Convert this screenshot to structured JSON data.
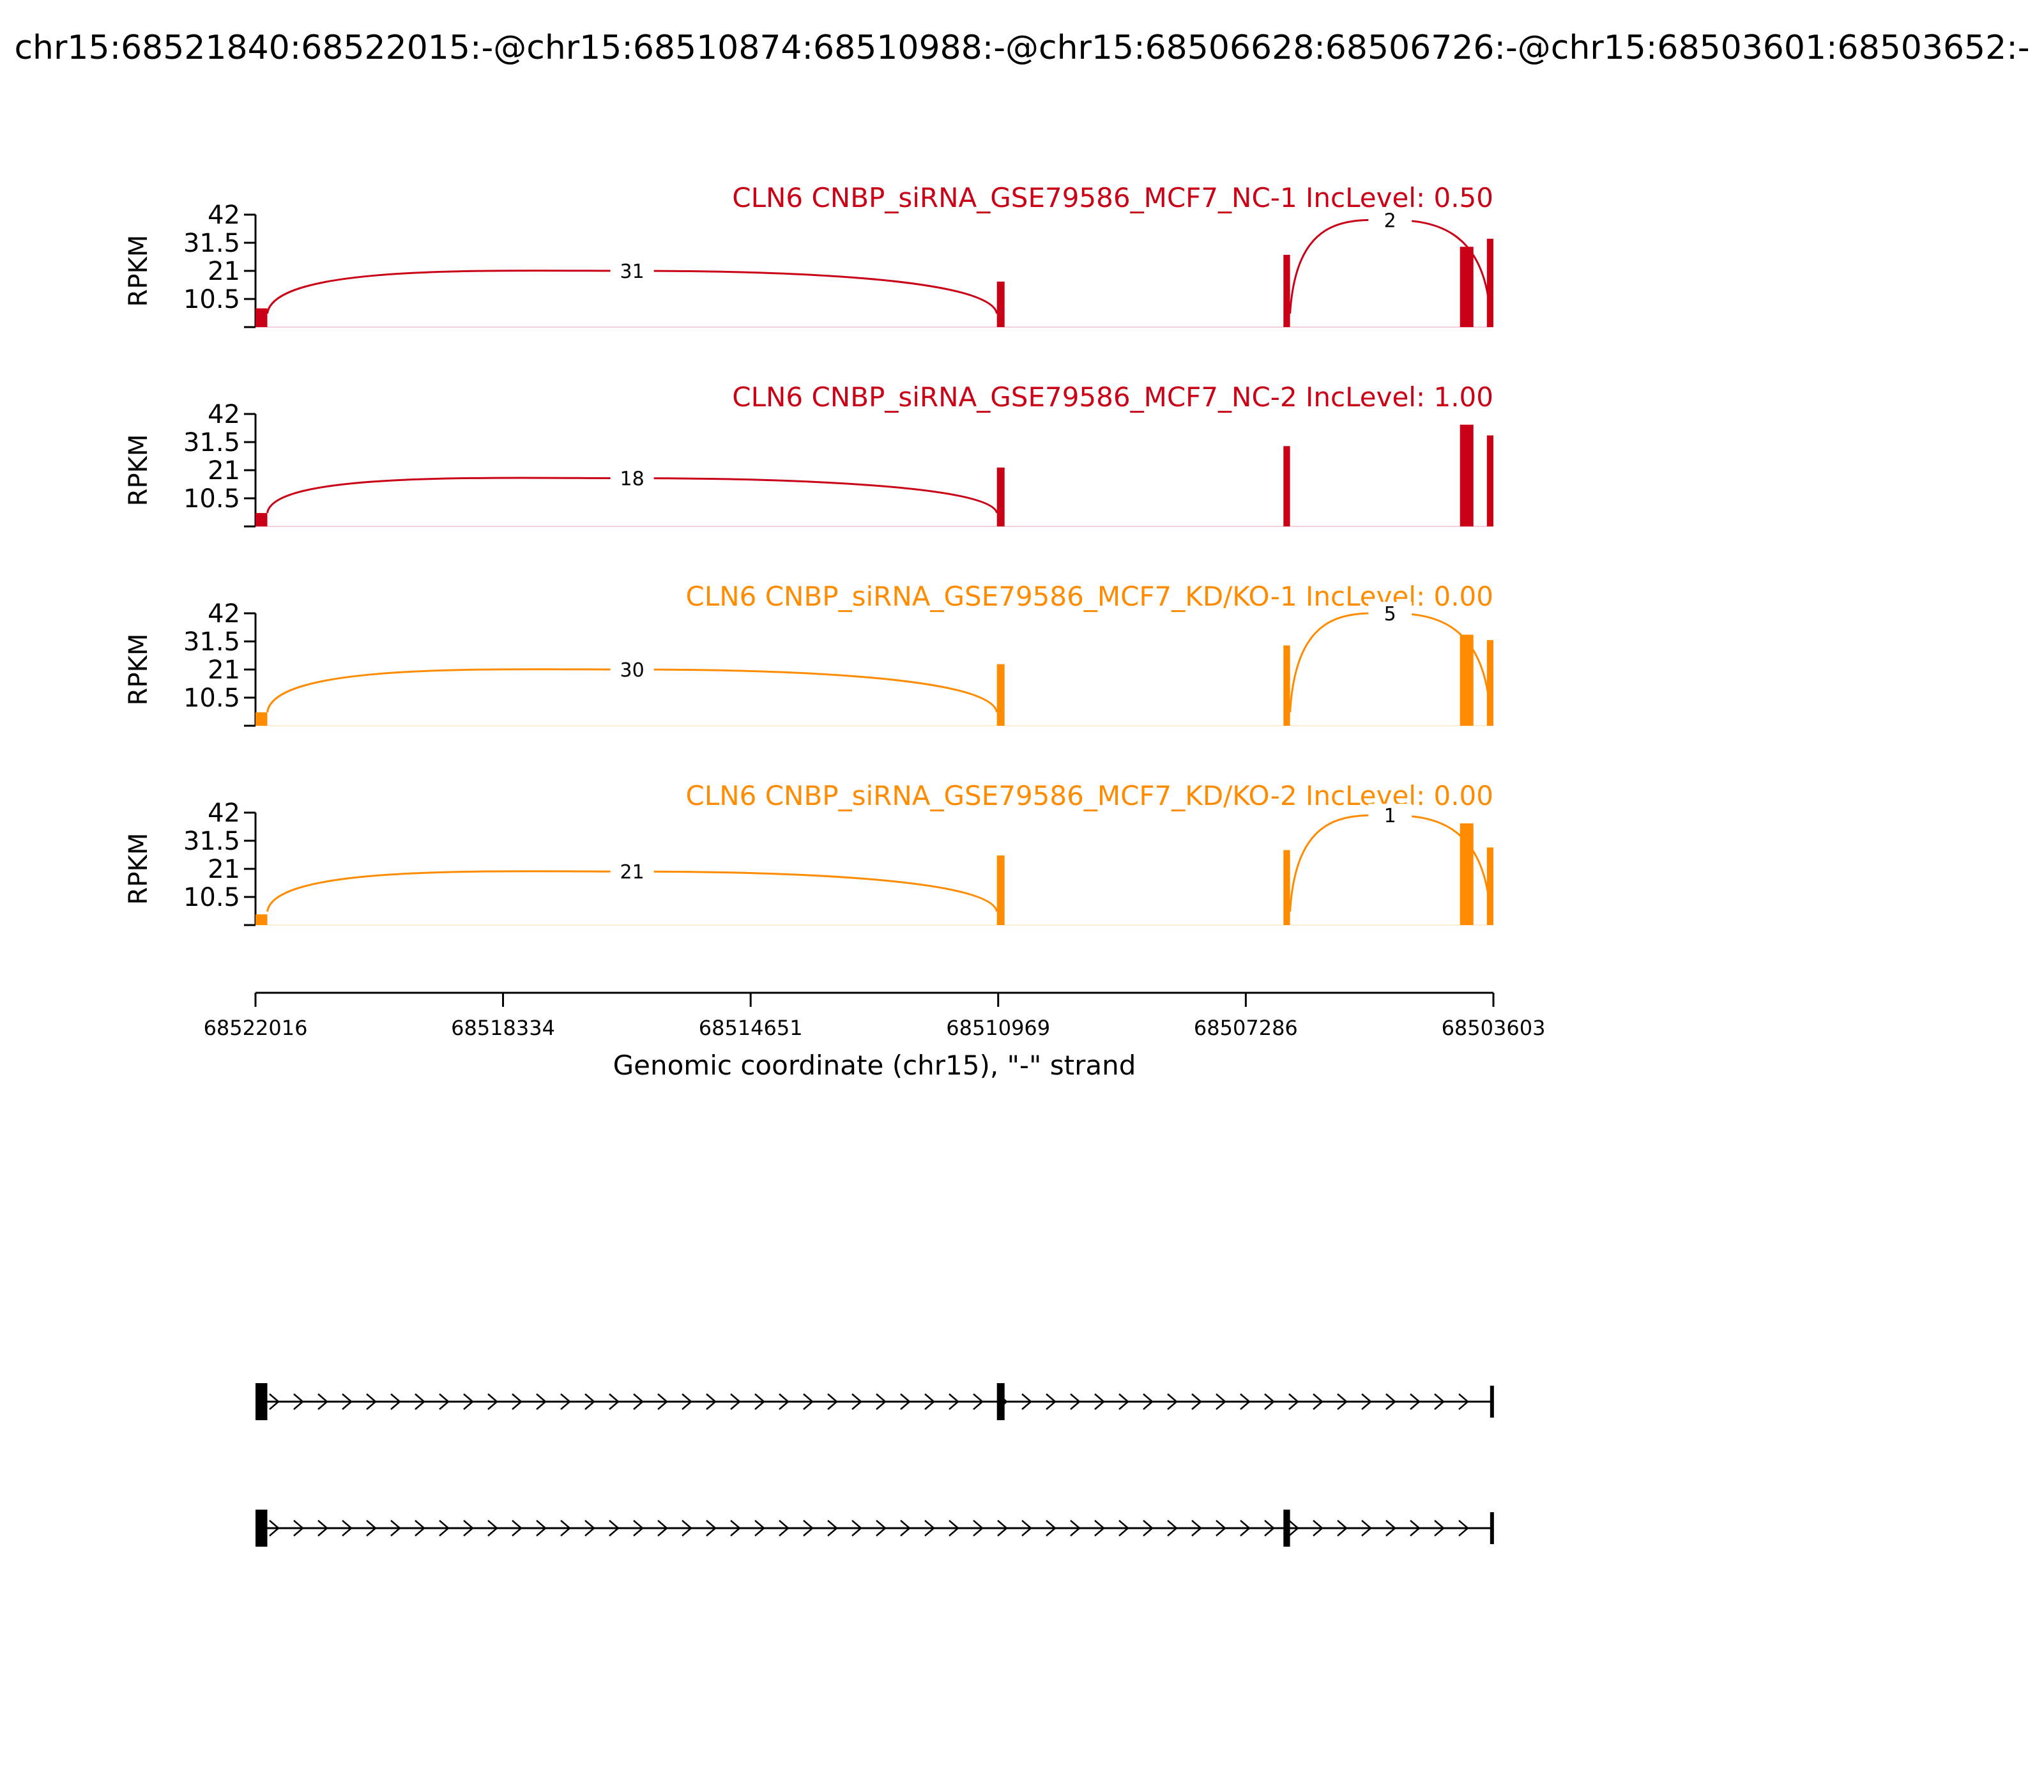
{
  "title": "chr15:68521840:68522015:-@chr15:68510874:68510988:-@chr15:68506628:68506726:-@chr15:68503601:68503652:-",
  "chart_data": {
    "type": "area",
    "chromosome": "chr15",
    "strand": "-",
    "x_range": [
      68522016,
      68503603
    ],
    "y_ticks": [
      10.5,
      21,
      31.5,
      42
    ],
    "y_range": [
      0,
      42
    ],
    "ylabel": "RPKM",
    "xlabel": "Genomic coordinate (chr15), \"-\" strand",
    "x_ticks": [
      {
        "value": 68522016,
        "label": "68522016"
      },
      {
        "value": 68518334,
        "label": "68518334"
      },
      {
        "value": 68514651,
        "label": "68514651"
      },
      {
        "value": 68510969,
        "label": "68510969"
      },
      {
        "value": 68507286,
        "label": "68507286"
      },
      {
        "value": 68503603,
        "label": "68503603"
      }
    ],
    "exons": [
      {
        "start": 68522015,
        "end": 68521840
      },
      {
        "start": 68510988,
        "end": 68510874
      },
      {
        "start": 68506726,
        "end": 68506628
      },
      {
        "start": 68503652,
        "end": 68503601
      }
    ],
    "series": [
      {
        "name": "CLN6 CNBP_siRNA_GSE79586_MCF7_NC-1 IncLevel: 0.50",
        "color": "#c90016",
        "coverage": [
          {
            "start": 68522016,
            "end": 68521840,
            "height": 7
          },
          {
            "start": 68510988,
            "end": 68510874,
            "height": 17
          },
          {
            "start": 68506726,
            "end": 68506628,
            "height": 27
          },
          {
            "start": 68504100,
            "end": 68503900,
            "height": 30
          },
          {
            "start": 68503700,
            "end": 68503603,
            "height": 33
          }
        ],
        "junctions": [
          {
            "from": 68521840,
            "to": 68510988,
            "count": "31",
            "arc_peak": 21,
            "direction": "up"
          },
          {
            "from": 68506628,
            "to": 68503652,
            "count": "2",
            "arc_peak": 40,
            "direction": "up"
          }
        ]
      },
      {
        "name": "CLN6 CNBP_siRNA_GSE79586_MCF7_NC-2 IncLevel: 1.00",
        "color": "#c90016",
        "coverage": [
          {
            "start": 68522016,
            "end": 68521840,
            "height": 5
          },
          {
            "start": 68510988,
            "end": 68510874,
            "height": 22
          },
          {
            "start": 68506726,
            "end": 68506628,
            "height": 30
          },
          {
            "start": 68504100,
            "end": 68503900,
            "height": 38
          },
          {
            "start": 68503700,
            "end": 68503603,
            "height": 34
          }
        ],
        "junctions": [
          {
            "from": 68521840,
            "to": 68510988,
            "count": "18",
            "arc_peak": 18,
            "direction": "up"
          }
        ]
      },
      {
        "name": "CLN6 CNBP_siRNA_GSE79586_MCF7_KD/KO-1 IncLevel: 0.00",
        "color": "#ff8c00",
        "coverage": [
          {
            "start": 68522016,
            "end": 68521840,
            "height": 5
          },
          {
            "start": 68510988,
            "end": 68510874,
            "height": 23
          },
          {
            "start": 68506726,
            "end": 68506628,
            "height": 30
          },
          {
            "start": 68504100,
            "end": 68503900,
            "height": 34
          },
          {
            "start": 68503700,
            "end": 68503603,
            "height": 32
          }
        ],
        "junctions": [
          {
            "from": 68521840,
            "to": 68510988,
            "count": "30",
            "arc_peak": 21,
            "direction": "up"
          },
          {
            "from": 68506628,
            "to": 68503652,
            "count": "5",
            "arc_peak": 42,
            "direction": "up"
          }
        ]
      },
      {
        "name": "CLN6 CNBP_siRNA_GSE79586_MCF7_KD/KO-2 IncLevel: 0.00",
        "color": "#ff8c00",
        "coverage": [
          {
            "start": 68522016,
            "end": 68521840,
            "height": 4
          },
          {
            "start": 68510988,
            "end": 68510874,
            "height": 26
          },
          {
            "start": 68506726,
            "end": 68506628,
            "height": 28
          },
          {
            "start": 68504100,
            "end": 68503900,
            "height": 38
          },
          {
            "start": 68503700,
            "end": 68503603,
            "height": 29
          }
        ],
        "junctions": [
          {
            "from": 68521840,
            "to": 68510988,
            "count": "21",
            "arc_peak": 20,
            "direction": "up"
          },
          {
            "from": 68506628,
            "to": 68503652,
            "count": "1",
            "arc_peak": 41,
            "direction": "up"
          }
        ]
      }
    ],
    "isoforms": [
      {
        "exons": [
          [
            68522016,
            68521840
          ],
          [
            68510988,
            68510874
          ],
          [
            68503652,
            68503601
          ]
        ]
      },
      {
        "exons": [
          [
            68522016,
            68521840
          ],
          [
            68506726,
            68506628
          ],
          [
            68503652,
            68503601
          ]
        ]
      }
    ]
  }
}
